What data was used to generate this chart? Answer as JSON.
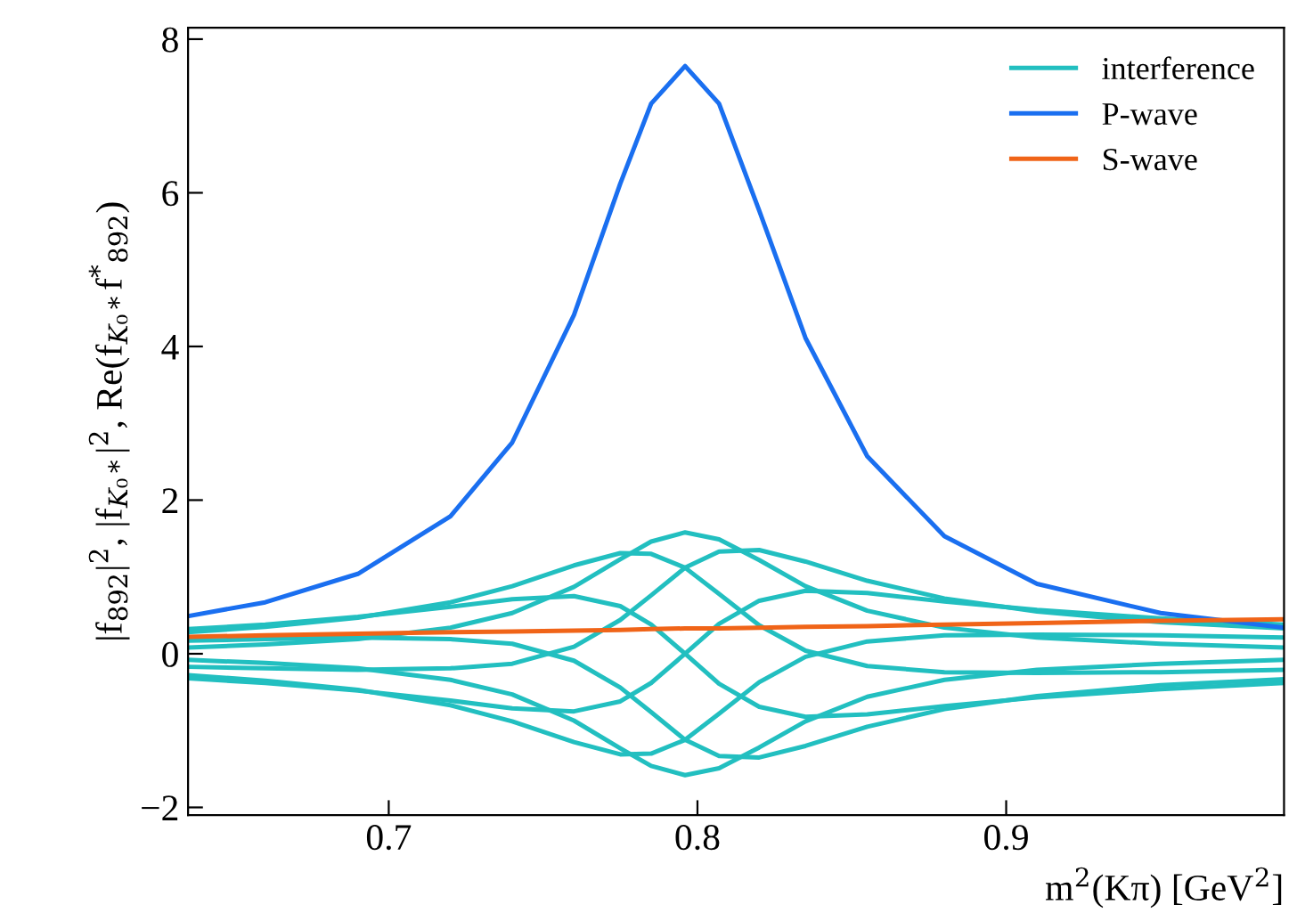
{
  "chart_data": {
    "type": "line",
    "xlabel": "m$^{2}$(Kπ) [GeV$^{2}$]",
    "ylabel": "|f$_{892}$|$^{2}$, |f$_{K₀*}$|$^{2}$, Re(f$_{K₀*}$f$^{*}$$_{892}$)",
    "x": [
      0.635,
      0.66,
      0.69,
      0.72,
      0.74,
      0.76,
      0.775,
      0.785,
      0.796,
      0.807,
      0.82,
      0.835,
      0.855,
      0.88,
      0.91,
      0.95,
      0.99
    ],
    "xlim": [
      0.635,
      0.99
    ],
    "xticks": [
      0.7,
      0.8,
      0.9
    ],
    "ylim": [
      -2.1,
      8.15
    ],
    "yticks": [
      {
        "value": -2,
        "label": "−2"
      },
      0,
      2,
      4,
      6,
      8
    ],
    "legend": "top right",
    "grid": false,
    "series": [
      {
        "name": "interference",
        "color": "#22bfc0",
        "values": [
          0.32,
          0.38,
          0.48,
          0.61,
          0.71,
          0.75,
          0.62,
          0.38,
          0.0,
          -0.39,
          -0.69,
          -0.82,
          -0.79,
          -0.68,
          -0.57,
          -0.46,
          -0.38
        ]
      },
      {
        "color": "#22bfc0",
        "values": [
          0.17,
          0.19,
          0.21,
          0.19,
          0.13,
          -0.09,
          -0.44,
          -0.76,
          -1.12,
          -1.33,
          -1.35,
          -1.2,
          -0.95,
          -0.72,
          -0.55,
          -0.41,
          -0.33
        ]
      },
      {
        "color": "#22bfc0",
        "values": [
          -0.08,
          -0.12,
          -0.19,
          -0.34,
          -0.53,
          -0.87,
          -1.23,
          -1.46,
          -1.58,
          -1.49,
          -1.22,
          -0.88,
          -0.56,
          -0.34,
          -0.21,
          -0.13,
          -0.08
        ]
      },
      {
        "color": "#22bfc0",
        "values": [
          -0.28,
          -0.35,
          -0.47,
          -0.67,
          -0.88,
          -1.15,
          -1.31,
          -1.3,
          -1.12,
          -0.78,
          -0.37,
          -0.04,
          0.16,
          0.24,
          0.25,
          0.24,
          0.21
        ]
      },
      {
        "color": "#22bfc0",
        "values": [
          -0.32,
          -0.38,
          -0.48,
          -0.61,
          -0.71,
          -0.75,
          -0.62,
          -0.38,
          0.0,
          0.39,
          0.69,
          0.82,
          0.79,
          0.68,
          0.57,
          0.46,
          0.38
        ]
      },
      {
        "color": "#22bfc0",
        "values": [
          -0.17,
          -0.19,
          -0.21,
          -0.19,
          -0.13,
          0.09,
          0.44,
          0.76,
          1.12,
          1.33,
          1.35,
          1.2,
          0.95,
          0.72,
          0.55,
          0.41,
          0.33
        ]
      },
      {
        "color": "#22bfc0",
        "values": [
          0.08,
          0.12,
          0.19,
          0.34,
          0.53,
          0.87,
          1.23,
          1.46,
          1.58,
          1.49,
          1.22,
          0.88,
          0.56,
          0.34,
          0.21,
          0.13,
          0.08
        ]
      },
      {
        "color": "#22bfc0",
        "values": [
          0.28,
          0.35,
          0.47,
          0.67,
          0.88,
          1.15,
          1.31,
          1.3,
          1.12,
          0.78,
          0.37,
          0.04,
          -0.16,
          -0.24,
          -0.25,
          -0.24,
          -0.21
        ]
      },
      {
        "name": "P-wave",
        "color": "#1a6ff0",
        "values": [
          0.49,
          0.67,
          1.04,
          1.79,
          2.75,
          4.41,
          6.12,
          7.16,
          7.65,
          7.16,
          5.77,
          4.11,
          2.57,
          1.53,
          0.91,
          0.53,
          0.34
        ]
      },
      {
        "name": "S-wave",
        "color": "#f06418",
        "values": [
          0.22,
          0.24,
          0.26,
          0.28,
          0.29,
          0.3,
          0.31,
          0.32,
          0.33,
          0.33,
          0.34,
          0.35,
          0.36,
          0.38,
          0.4,
          0.43,
          0.45
        ]
      }
    ]
  }
}
